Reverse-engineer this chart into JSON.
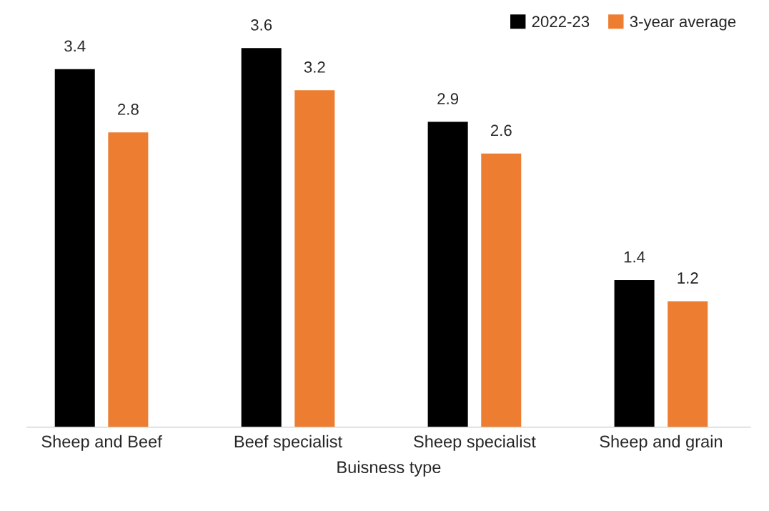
{
  "chart_data": {
    "type": "bar",
    "xlabel": "Buisness type",
    "categories": [
      "Sheep and Beef",
      "Beef specialist",
      "Sheep specialist",
      "Sheep and grain"
    ],
    "series": [
      {
        "name": "2022-23",
        "color": "#000000",
        "values": [
          3.4,
          3.6,
          2.9,
          1.4
        ]
      },
      {
        "name": "3-year average",
        "color": "#ed7d31",
        "values": [
          2.8,
          3.2,
          2.6,
          1.2
        ]
      }
    ],
    "data_labels": true,
    "legend": "top right",
    "grid": false,
    "tick_labels": "x"
  }
}
